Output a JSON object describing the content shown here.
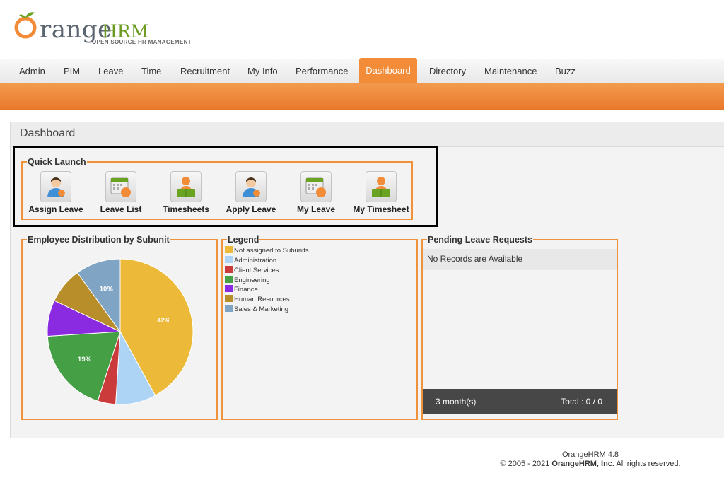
{
  "brand": {
    "wordmark": "range",
    "hrm": "HRM",
    "tagline": "OPEN SOURCE HR MANAGEMENT"
  },
  "nav": {
    "items": [
      "Admin",
      "PIM",
      "Leave",
      "Time",
      "Recruitment",
      "My Info",
      "Performance",
      "Dashboard",
      "Directory",
      "Maintenance",
      "Buzz"
    ],
    "active": "Dashboard"
  },
  "page_title": "Dashboard",
  "quick_launch": {
    "title": "Quick Launch",
    "items": [
      {
        "label": "Assign Leave",
        "icon": "assign-leave-icon"
      },
      {
        "label": "Leave List",
        "icon": "leave-list-icon"
      },
      {
        "label": "Timesheets",
        "icon": "timesheets-icon"
      },
      {
        "label": "Apply Leave",
        "icon": "apply-leave-icon"
      },
      {
        "label": "My Leave",
        "icon": "my-leave-icon"
      },
      {
        "label": "My Timesheet",
        "icon": "my-timesheet-icon"
      }
    ]
  },
  "distribution": {
    "title": "Employee Distribution by Subunit",
    "chart_data": {
      "type": "pie",
      "categories": [
        "Not assigned to Subunits",
        "Administration",
        "Client Services",
        "Engineering",
        "Finance",
        "Human Resources",
        "Sales & Marketing"
      ],
      "values": [
        42,
        9,
        4,
        19,
        8,
        8,
        10
      ],
      "labels": [
        "42%",
        "",
        "",
        "19%",
        "",
        "",
        "10%"
      ],
      "colors": [
        "#ecb938",
        "#aed4f5",
        "#cc3b3b",
        "#45a045",
        "#8a2be2",
        "#b88e2a",
        "#80a4c4"
      ]
    }
  },
  "legend": {
    "title": "Legend",
    "items": [
      {
        "label": "Not assigned to Subunits",
        "color": "#ecb938"
      },
      {
        "label": "Administration",
        "color": "#aed4f5"
      },
      {
        "label": "Client Services",
        "color": "#cc3b3b"
      },
      {
        "label": "Engineering",
        "color": "#45a045"
      },
      {
        "label": "Finance",
        "color": "#8a2be2"
      },
      {
        "label": "Human Resources",
        "color": "#b88e2a"
      },
      {
        "label": "Sales & Marketing",
        "color": "#80a4c4"
      }
    ]
  },
  "pending": {
    "title": "Pending Leave Requests",
    "empty": "No Records are Available",
    "period": "3 month(s)",
    "total": "Total : 0 / 0"
  },
  "footer": {
    "version": "OrangeHRM 4.8",
    "copyright_prefix": "© 2005 - 2021 ",
    "company": "OrangeHRM, Inc.",
    "copyright_suffix": " All rights reserved."
  },
  "colors": {
    "accent": "#f28c38",
    "box_border": "#f0923b",
    "footer_bar": "#474747"
  }
}
